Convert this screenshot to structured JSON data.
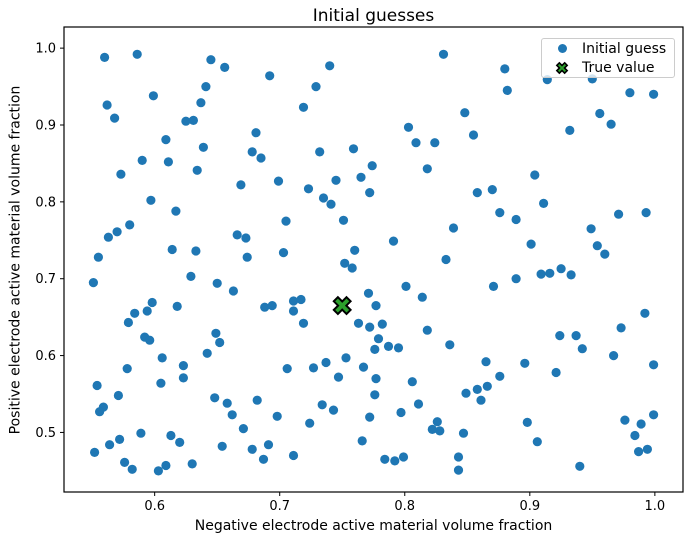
{
  "figure": {
    "title": "Initial guesses"
  },
  "legend": {
    "entries": [
      {
        "label": "Initial guess",
        "marker": "dot-icon"
      },
      {
        "label": "True value",
        "marker": "x-cross-icon"
      }
    ]
  },
  "chart_data": {
    "type": "scatter",
    "title": "Initial guesses",
    "xlabel": "Negative electrode active material volume fraction",
    "ylabel": "Positive electrode active material volume fraction",
    "xlim": [
      0.5275,
      1.0225
    ],
    "ylim": [
      0.4225,
      1.0275
    ],
    "xticks": [
      0.6,
      0.7,
      0.8,
      0.9,
      1.0
    ],
    "yticks": [
      0.5,
      0.6,
      0.7,
      0.8,
      0.9,
      1.0
    ],
    "grid": false,
    "legend_position": "upper right",
    "colors": {
      "point": "#1f77b4",
      "true_value_fill": "#2ca02c",
      "true_value_edge": "#000000",
      "spine": "#000000",
      "legend_edge": "#cccccc"
    },
    "series": [
      {
        "name": "Initial guess",
        "marker": "dot",
        "color": "#1f77b4",
        "points": [
          [
            0.56,
            0.988
          ],
          [
            0.586,
            0.992
          ],
          [
            0.645,
            0.985
          ],
          [
            0.656,
            0.975
          ],
          [
            0.692,
            0.964
          ],
          [
            0.74,
            0.977
          ],
          [
            0.729,
            0.95
          ],
          [
            0.641,
            0.95
          ],
          [
            0.599,
            0.938
          ],
          [
            0.562,
            0.926
          ],
          [
            0.568,
            0.909
          ],
          [
            0.637,
            0.929
          ],
          [
            0.625,
            0.905
          ],
          [
            0.631,
            0.906
          ],
          [
            0.719,
            0.923
          ],
          [
            0.681,
            0.89
          ],
          [
            0.609,
            0.881
          ],
          [
            0.639,
            0.871
          ],
          [
            0.678,
            0.865
          ],
          [
            0.685,
            0.857
          ],
          [
            0.732,
            0.865
          ],
          [
            0.759,
            0.869
          ],
          [
            0.59,
            0.854
          ],
          [
            0.611,
            0.852
          ],
          [
            0.573,
            0.836
          ],
          [
            0.634,
            0.841
          ],
          [
            0.774,
            0.847
          ],
          [
            0.765,
            0.832
          ],
          [
            0.745,
            0.828
          ],
          [
            0.669,
            0.822
          ],
          [
            0.699,
            0.827
          ],
          [
            0.723,
            0.817
          ],
          [
            0.772,
            0.812
          ],
          [
            0.735,
            0.805
          ],
          [
            0.741,
            0.797
          ],
          [
            0.751,
            0.776
          ],
          [
            0.597,
            0.802
          ],
          [
            0.617,
            0.788
          ],
          [
            0.705,
            0.775
          ],
          [
            0.58,
            0.77
          ],
          [
            0.57,
            0.761
          ],
          [
            0.563,
            0.754
          ],
          [
            0.666,
            0.757
          ],
          [
            0.673,
            0.753
          ],
          [
            0.614,
            0.738
          ],
          [
            0.633,
            0.736
          ],
          [
            0.555,
            0.728
          ],
          [
            0.674,
            0.728
          ],
          [
            0.703,
            0.734
          ],
          [
            0.76,
            0.737
          ],
          [
            0.831,
            0.992
          ],
          [
            0.88,
            0.973
          ],
          [
            0.882,
            0.945
          ],
          [
            0.98,
            0.942
          ],
          [
            0.999,
            0.94
          ],
          [
            0.848,
            0.916
          ],
          [
            0.956,
            0.915
          ],
          [
            0.965,
            0.901
          ],
          [
            0.803,
            0.897
          ],
          [
            0.855,
            0.887
          ],
          [
            0.932,
            0.893
          ],
          [
            0.809,
            0.877
          ],
          [
            0.824,
            0.877
          ],
          [
            0.914,
            0.959
          ],
          [
            0.95,
            0.96
          ],
          [
            0.818,
            0.843
          ],
          [
            0.904,
            0.835
          ],
          [
            0.858,
            0.812
          ],
          [
            0.87,
            0.816
          ],
          [
            0.911,
            0.798
          ],
          [
            0.876,
            0.786
          ],
          [
            0.889,
            0.777
          ],
          [
            0.971,
            0.784
          ],
          [
            0.993,
            0.786
          ],
          [
            0.839,
            0.766
          ],
          [
            0.949,
            0.765
          ],
          [
            0.791,
            0.749
          ],
          [
            0.901,
            0.745
          ],
          [
            0.954,
            0.743
          ],
          [
            0.96,
            0.732
          ],
          [
            0.833,
            0.725
          ],
          [
            0.752,
            0.72
          ],
          [
            0.758,
            0.714
          ],
          [
            0.551,
            0.695
          ],
          [
            0.629,
            0.703
          ],
          [
            0.65,
            0.694
          ],
          [
            0.663,
            0.684
          ],
          [
            0.598,
            0.669
          ],
          [
            0.618,
            0.664
          ],
          [
            0.594,
            0.658
          ],
          [
            0.584,
            0.655
          ],
          [
            0.579,
            0.643
          ],
          [
            0.688,
            0.663
          ],
          [
            0.694,
            0.665
          ],
          [
            0.711,
            0.671
          ],
          [
            0.717,
            0.673
          ],
          [
            0.711,
            0.658
          ],
          [
            0.719,
            0.642
          ],
          [
            0.763,
            0.642
          ],
          [
            0.771,
            0.681
          ],
          [
            0.777,
            0.665
          ],
          [
            0.772,
            0.637
          ],
          [
            0.592,
            0.624
          ],
          [
            0.596,
            0.62
          ],
          [
            0.649,
            0.629
          ],
          [
            0.652,
            0.617
          ],
          [
            0.642,
            0.603
          ],
          [
            0.606,
            0.597
          ],
          [
            0.623,
            0.587
          ],
          [
            0.623,
            0.571
          ],
          [
            0.578,
            0.583
          ],
          [
            0.605,
            0.564
          ],
          [
            0.554,
            0.561
          ],
          [
            0.571,
            0.548
          ],
          [
            0.559,
            0.533
          ],
          [
            0.556,
            0.527
          ],
          [
            0.648,
            0.545
          ],
          [
            0.658,
            0.538
          ],
          [
            0.662,
            0.523
          ],
          [
            0.671,
            0.505
          ],
          [
            0.682,
            0.542
          ],
          [
            0.698,
            0.521
          ],
          [
            0.706,
            0.583
          ],
          [
            0.727,
            0.584
          ],
          [
            0.737,
            0.591
          ],
          [
            0.753,
            0.597
          ],
          [
            0.747,
            0.572
          ],
          [
            0.767,
            0.585
          ],
          [
            0.777,
            0.57
          ],
          [
            0.734,
            0.536
          ],
          [
            0.743,
            0.529
          ],
          [
            0.724,
            0.512
          ],
          [
            0.772,
            0.52
          ],
          [
            0.766,
            0.489
          ],
          [
            0.589,
            0.499
          ],
          [
            0.572,
            0.491
          ],
          [
            0.564,
            0.484
          ],
          [
            0.552,
            0.474
          ],
          [
            0.613,
            0.496
          ],
          [
            0.62,
            0.487
          ],
          [
            0.654,
            0.482
          ],
          [
            0.678,
            0.478
          ],
          [
            0.691,
            0.484
          ],
          [
            0.687,
            0.465
          ],
          [
            0.711,
            0.47
          ],
          [
            0.576,
            0.461
          ],
          [
            0.582,
            0.452
          ],
          [
            0.603,
            0.45
          ],
          [
            0.609,
            0.457
          ],
          [
            0.63,
            0.459
          ],
          [
            0.801,
            0.69
          ],
          [
            0.814,
            0.676
          ],
          [
            0.871,
            0.69
          ],
          [
            0.889,
            0.7
          ],
          [
            0.909,
            0.706
          ],
          [
            0.916,
            0.707
          ],
          [
            0.925,
            0.713
          ],
          [
            0.933,
            0.705
          ],
          [
            0.992,
            0.655
          ],
          [
            0.782,
            0.641
          ],
          [
            0.818,
            0.633
          ],
          [
            0.776,
            0.608
          ],
          [
            0.787,
            0.612
          ],
          [
            0.795,
            0.61
          ],
          [
            0.779,
            0.622
          ],
          [
            0.836,
            0.614
          ],
          [
            0.865,
            0.592
          ],
          [
            0.876,
            0.573
          ],
          [
            0.896,
            0.59
          ],
          [
            0.921,
            0.578
          ],
          [
            0.924,
            0.626
          ],
          [
            0.937,
            0.626
          ],
          [
            0.942,
            0.609
          ],
          [
            0.967,
            0.6
          ],
          [
            0.973,
            0.636
          ],
          [
            0.999,
            0.588
          ],
          [
            0.849,
            0.551
          ],
          [
            0.858,
            0.556
          ],
          [
            0.866,
            0.56
          ],
          [
            0.861,
            0.542
          ],
          [
            0.806,
            0.566
          ],
          [
            0.811,
            0.537
          ],
          [
            0.797,
            0.526
          ],
          [
            0.776,
            0.549
          ],
          [
            0.826,
            0.514
          ],
          [
            0.822,
            0.504
          ],
          [
            0.828,
            0.502
          ],
          [
            0.847,
            0.499
          ],
          [
            0.898,
            0.513
          ],
          [
            0.906,
            0.488
          ],
          [
            0.976,
            0.516
          ],
          [
            0.989,
            0.511
          ],
          [
            0.984,
            0.496
          ],
          [
            0.999,
            0.523
          ],
          [
            0.784,
            0.465
          ],
          [
            0.792,
            0.463
          ],
          [
            0.799,
            0.468
          ],
          [
            0.843,
            0.468
          ],
          [
            0.843,
            0.451
          ],
          [
            0.94,
            0.456
          ],
          [
            0.987,
            0.475
          ],
          [
            0.994,
            0.478
          ]
        ]
      },
      {
        "name": "True value",
        "marker": "x-cross",
        "color": "#2ca02c",
        "edge_color": "#000000",
        "points": [
          [
            0.75,
            0.665
          ]
        ]
      }
    ]
  }
}
